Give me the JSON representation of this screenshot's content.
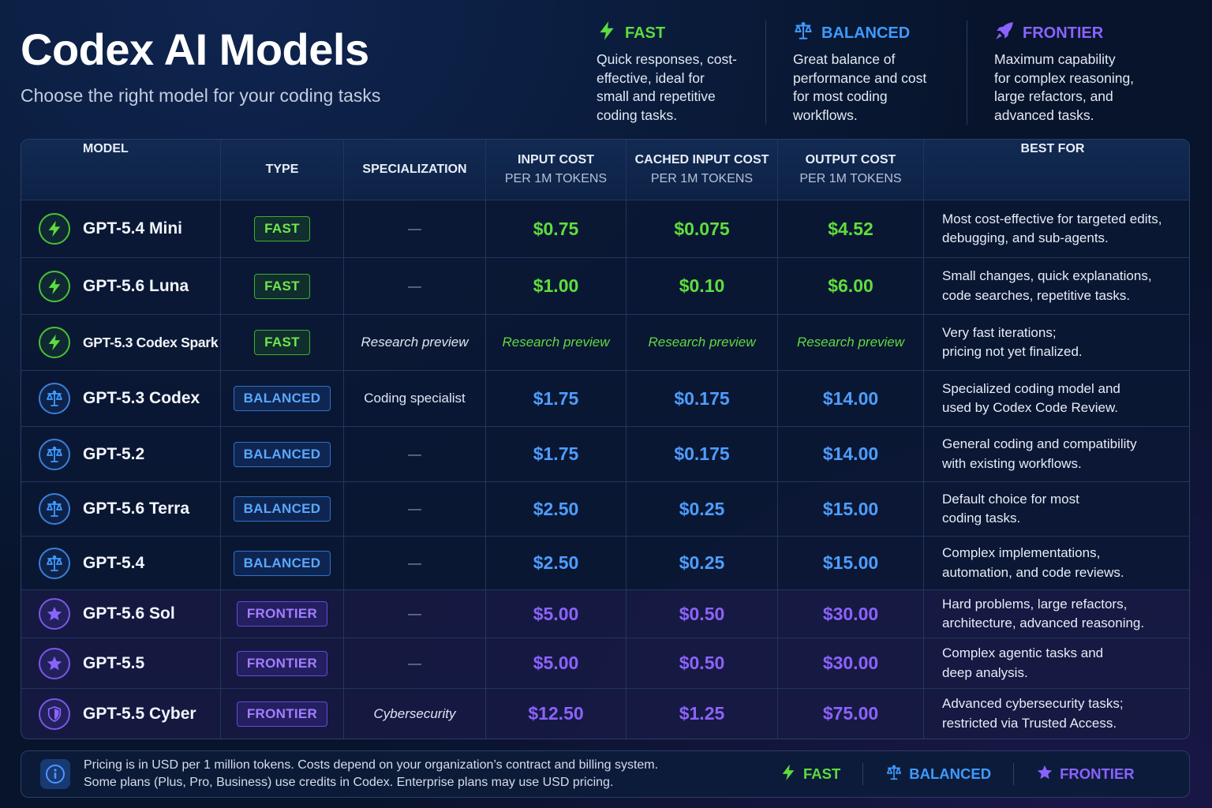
{
  "header": {
    "title": "Codex AI Models",
    "subtitle": "Choose the right model for your coding tasks"
  },
  "colors": {
    "fast": "#5ddc3f",
    "balanced": "#3d9bff",
    "frontier": "#8a63ff",
    "background": "#07142b"
  },
  "legend": [
    {
      "tier": "fast",
      "icon": "lightning-icon",
      "label": "FAST",
      "lines": [
        "Quick responses, cost-",
        "effective, ideal for",
        "small and repetitive",
        "coding tasks."
      ]
    },
    {
      "tier": "balanced",
      "icon": "scales-icon",
      "label": "BALANCED",
      "lines": [
        "Great balance of",
        "performance and cost",
        "for most coding",
        "workflows."
      ]
    },
    {
      "tier": "frontier",
      "icon": "rocket-icon",
      "label": "FRONTIER",
      "lines": [
        "Maximum capability",
        "for complex reasoning,",
        "large refactors, and",
        "advanced tasks."
      ]
    }
  ],
  "table": {
    "headers": {
      "model": "MODEL",
      "type": "TYPE",
      "specialization": "SPECIALIZATION",
      "input": "INPUT COST",
      "input_sub": "PER 1M TOKENS",
      "cached": "CACHED INPUT COST",
      "cached_sub": "PER 1M TOKENS",
      "output": "OUTPUT COST",
      "output_sub": "PER 1M TOKENS",
      "best": "BEST FOR"
    },
    "rows": [
      {
        "tier": "fast",
        "icon": "lightning-icon",
        "name": "GPT-5.4 Mini",
        "type": "FAST",
        "spec": "—",
        "input": "$0.75",
        "cached": "$0.075",
        "output": "$4.52",
        "best": [
          "Most cost-effective for targeted edits,",
          "debugging, and sub-agents."
        ]
      },
      {
        "tier": "fast",
        "icon": "lightning-icon",
        "name": "GPT-5.6 Luna",
        "type": "FAST",
        "spec": "—",
        "input": "$1.00",
        "cached": "$0.10",
        "output": "$6.00",
        "best": [
          "Small changes, quick explanations,",
          "code searches, repetitive tasks."
        ]
      },
      {
        "tier": "fast",
        "icon": "lightning-icon",
        "name": "GPT-5.3 Codex Spark",
        "type": "FAST",
        "spec": "Research preview",
        "input": "Research preview",
        "cached": "Research preview",
        "output": "Research preview",
        "best": [
          "Very fast iterations;",
          "pricing not yet finalized."
        ]
      },
      {
        "tier": "balanced",
        "icon": "scales-icon",
        "name": "GPT-5.3 Codex",
        "type": "BALANCED",
        "spec": "Coding specialist",
        "input": "$1.75",
        "cached": "$0.175",
        "output": "$14.00",
        "best": [
          "Specialized coding model and",
          "used by Codex Code Review."
        ]
      },
      {
        "tier": "balanced",
        "icon": "scales-icon",
        "name": "GPT-5.2",
        "type": "BALANCED",
        "spec": "—",
        "input": "$1.75",
        "cached": "$0.175",
        "output": "$14.00",
        "best": [
          "General coding and compatibility",
          "with existing workflows."
        ]
      },
      {
        "tier": "balanced",
        "icon": "scales-icon",
        "name": "GPT-5.6 Terra",
        "type": "BALANCED",
        "spec": "—",
        "input": "$2.50",
        "cached": "$0.25",
        "output": "$15.00",
        "best": [
          "Default choice for most",
          "coding tasks."
        ]
      },
      {
        "tier": "balanced",
        "icon": "scales-icon",
        "name": "GPT-5.4",
        "type": "BALANCED",
        "spec": "—",
        "input": "$2.50",
        "cached": "$0.25",
        "output": "$15.00",
        "best": [
          "Complex implementations,",
          "automation, and code reviews."
        ]
      },
      {
        "tier": "frontier",
        "icon": "star-icon",
        "name": "GPT-5.6 Sol",
        "type": "FRONTIER",
        "spec": "—",
        "input": "$5.00",
        "cached": "$0.50",
        "output": "$30.00",
        "best": [
          "Hard problems, large refactors,",
          "architecture, advanced reasoning."
        ]
      },
      {
        "tier": "frontier",
        "icon": "star-icon",
        "name": "GPT-5.5",
        "type": "FRONTIER",
        "spec": "—",
        "input": "$5.00",
        "cached": "$0.50",
        "output": "$30.00",
        "best": [
          "Complex agentic tasks and",
          "deep analysis."
        ]
      },
      {
        "tier": "frontier",
        "icon": "shield-icon",
        "name": "GPT-5.5 Cyber",
        "type": "FRONTIER",
        "spec": "Cybersecurity",
        "input": "$12.50",
        "cached": "$1.25",
        "output": "$75.00",
        "best": [
          "Advanced cybersecurity tasks;",
          "restricted via Trusted Access."
        ]
      }
    ]
  },
  "footer": {
    "icon": "info-icon",
    "lines": [
      "Pricing is in USD per 1 million tokens. Costs depend on your organization’s contract and billing system.",
      "Some plans (Plus, Pro, Business) use credits in Codex. Enterprise plans may use USD pricing."
    ],
    "legend": [
      {
        "tier": "fast",
        "icon": "lightning-icon",
        "label": "FAST"
      },
      {
        "tier": "balanced",
        "icon": "scales-icon",
        "label": "BALANCED"
      },
      {
        "tier": "frontier",
        "icon": "star-icon",
        "label": "FRONTIER"
      }
    ]
  }
}
